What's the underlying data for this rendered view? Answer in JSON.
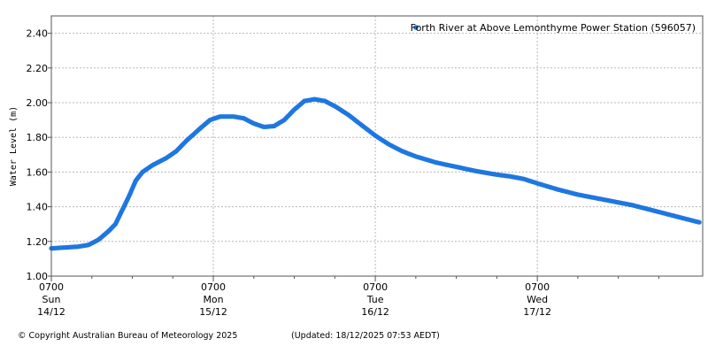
{
  "chart_data": {
    "type": "scatter",
    "title": "",
    "ylabel": "Water Level (m)",
    "xlabel": "",
    "x_unit": "hours since 0700 Sun 14/12",
    "xlim": [
      0,
      96.5
    ],
    "ylim": [
      1.0,
      2.5
    ],
    "grid": true,
    "legend_position": "top-right",
    "y_ticks": [
      "1.00",
      "1.20",
      "1.40",
      "1.60",
      "1.80",
      "2.00",
      "2.20",
      "2.40"
    ],
    "y_tick_values": [
      1.0,
      1.2,
      1.4,
      1.6,
      1.8,
      2.0,
      2.2,
      2.4
    ],
    "x_major_ticks": [
      {
        "x": 0,
        "time": "0700",
        "day": "Sun",
        "date": "14/12"
      },
      {
        "x": 24,
        "time": "0700",
        "day": "Mon",
        "date": "15/12"
      },
      {
        "x": 48,
        "time": "0700",
        "day": "Tue",
        "date": "16/12"
      },
      {
        "x": 72,
        "time": "0700",
        "day": "Wed",
        "date": "17/12"
      }
    ],
    "x_minor_step": 6,
    "series": [
      {
        "name": "Forth River at Above Lemonthyme Power Station (596057)",
        "color": "#1f77e0",
        "points": [
          [
            0,
            1.16
          ],
          [
            2,
            1.165
          ],
          [
            4,
            1.17
          ],
          [
            5.5,
            1.18
          ],
          [
            7,
            1.21
          ],
          [
            8.5,
            1.26
          ],
          [
            9.5,
            1.3
          ],
          [
            10.5,
            1.38
          ],
          [
            11.5,
            1.46
          ],
          [
            12.5,
            1.55
          ],
          [
            13.5,
            1.6
          ],
          [
            15,
            1.64
          ],
          [
            17,
            1.68
          ],
          [
            18.5,
            1.72
          ],
          [
            20,
            1.78
          ],
          [
            22,
            1.85
          ],
          [
            23.5,
            1.9
          ],
          [
            25,
            1.92
          ],
          [
            27,
            1.92
          ],
          [
            28.5,
            1.91
          ],
          [
            30,
            1.88
          ],
          [
            31.5,
            1.86
          ],
          [
            33,
            1.865
          ],
          [
            34.5,
            1.9
          ],
          [
            36,
            1.96
          ],
          [
            37.5,
            2.01
          ],
          [
            39,
            2.02
          ],
          [
            40.5,
            2.01
          ],
          [
            42,
            1.98
          ],
          [
            44,
            1.93
          ],
          [
            46,
            1.87
          ],
          [
            48,
            1.81
          ],
          [
            50,
            1.76
          ],
          [
            52,
            1.72
          ],
          [
            54,
            1.69
          ],
          [
            57,
            1.655
          ],
          [
            60,
            1.63
          ],
          [
            63,
            1.605
          ],
          [
            66,
            1.585
          ],
          [
            68,
            1.575
          ],
          [
            70,
            1.56
          ],
          [
            72,
            1.535
          ],
          [
            75,
            1.5
          ],
          [
            78,
            1.47
          ],
          [
            82,
            1.44
          ],
          [
            86,
            1.41
          ],
          [
            90,
            1.37
          ],
          [
            93,
            1.34
          ],
          [
            96,
            1.31
          ]
        ]
      }
    ]
  },
  "footer": {
    "copyright": "© Copyright Australian Bureau of Meteorology 2025",
    "updated": "(Updated: 18/12/2025 07:53 AEDT)"
  }
}
